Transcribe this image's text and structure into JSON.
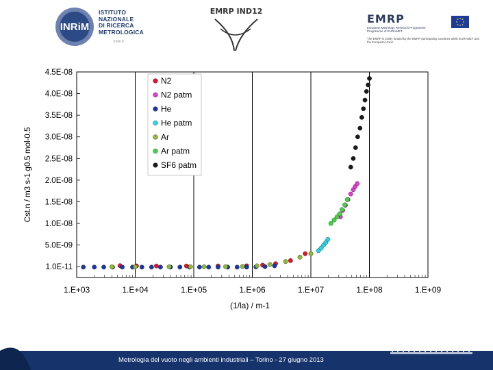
{
  "header": {
    "inrim_logo": {
      "mark": "INRiM",
      "lines": [
        "ISTITUTO",
        "NAZIONALE",
        "DI RICERCA",
        "METROLOGICA"
      ],
      "sub": "inrim.it"
    },
    "emrp_ind_title": "EMRP IND12",
    "emrp_logo": {
      "name": "EMRP",
      "tag_lines": [
        "European Metrology Research Programme",
        "Programme of EURAMET"
      ],
      "note": "The EMRP is jointly funded by the EMRP participating countries within EURAMET and the European Union"
    }
  },
  "chart_data": {
    "type": "scatter",
    "x_scale": "log",
    "xlabel": "(1/la)  /  m-1",
    "ylabel": "Cst.n   /  m3 s-1 g0.5 mol-0.5",
    "x_ticks": [
      "1.E+03",
      "1.E+04",
      "1.E+05",
      "1.E+06",
      "1.E+07",
      "1.E+08",
      "1.E+09"
    ],
    "x_tick_values": [
      1000,
      10000,
      100000,
      1000000,
      10000000,
      100000000,
      1000000000
    ],
    "y_ticks": [
      "1.0E-11",
      "5.0E-09",
      "1.0E-08",
      "1.5E-08",
      "2.0E-08",
      "2.5E-08",
      "3.0E-08",
      "3.5E-08",
      "4.0E-08",
      "4.5E-08"
    ],
    "y_tick_values": [
      1e-11,
      5e-09,
      1e-08,
      1.5e-08,
      2e-08,
      2.5e-08,
      3e-08,
      3.5e-08,
      4e-08,
      4.5e-08
    ],
    "xlim": [
      1000,
      1000000000
    ],
    "ylim": [
      -2.5e-09,
      4.5e-08
    ],
    "grid": "major vertical lines",
    "legend_position": "top-left inside plot",
    "series": [
      {
        "name": "N2",
        "color": "#e8132a",
        "x": [
          5500.0,
          10500.0,
          23000.0,
          75000.0,
          260000.0,
          800000.0,
          1500000.0,
          2500000.0,
          4500000.0,
          8000000.0
        ],
        "y": [
          2.3e-10,
          1.7e-10,
          1.6e-10,
          1.6e-10,
          1.7e-10,
          2e-10,
          3.5e-10,
          7e-10,
          1.4e-09,
          3e-09
        ]
      },
      {
        "name": "N2 patm",
        "color": "#e53ad0",
        "x": [
          32000000.0,
          35000000.0,
          39000000.0,
          43000000.0,
          48000000.0,
          53000000.0,
          57000000.0,
          62000000.0
        ],
        "y": [
          1.15e-08,
          1.3e-08,
          1.42e-08,
          1.55e-08,
          1.68e-08,
          1.78e-08,
          1.85e-08,
          1.92e-08
        ]
      },
      {
        "name": "He",
        "color": "#1a38a8",
        "x": [
          1300.0,
          2000.0,
          2900.0,
          4100.0,
          6000.0,
          9000.0,
          13000.0,
          19000.0,
          27000.0,
          40000.0,
          58000.0,
          85000.0,
          125000.0,
          180000.0,
          260000.0,
          380000.0,
          550000.0,
          800000.0,
          1150000.0,
          1650000.0,
          2400000.0
        ],
        "y": [
          -1e-10,
          -1e-10,
          -1e-10,
          -1e-10,
          -1e-10,
          -1e-10,
          -1e-10,
          -1e-10,
          -1e-10,
          -1e-10,
          -1e-10,
          -1e-10,
          -1e-10,
          -1e-10,
          -1e-10,
          -1e-10,
          -1e-10,
          -1e-10,
          -5e-11,
          2e-11,
          2e-10
        ]
      },
      {
        "name": "He patm",
        "color": "#26d8e8",
        "x": [
          13500000.0,
          15000000.0,
          16500000.0,
          18000000.0,
          19500000.0
        ],
        "y": [
          3.7e-09,
          4.3e-09,
          5e-09,
          5.6e-09,
          6.3e-09
        ]
      },
      {
        "name": "Ar",
        "color": "#8fbc2e",
        "x": [
          4000.0,
          10000.0,
          38000.0,
          88000.0,
          150000.0,
          350000.0,
          680000.0,
          1200000.0,
          2000000.0,
          3700000.0,
          6500000.0,
          10000000.0
        ],
        "y": [
          -3e-11,
          -3e-11,
          -2e-11,
          -2e-11,
          -1e-11,
          1e-11,
          5e-11,
          2e-10,
          5e-10,
          1.2e-09,
          2.2e-09,
          3e-09
        ]
      },
      {
        "name": "Ar patm",
        "color": "#3fd63f",
        "x": [
          22000000.0,
          25000000.0,
          28000000.0,
          31000000.0,
          34000000.0,
          38000000.0,
          42000000.0
        ],
        "y": [
          1e-08,
          1.08e-08,
          1.15e-08,
          1.22e-08,
          1.32e-08,
          1.43e-08,
          1.55e-08
        ]
      },
      {
        "name": "SF6 patm",
        "color": "#1a1a1a",
        "x": [
          48000000.0,
          53000000.0,
          58000000.0,
          63000000.0,
          69000000.0,
          74000000.0,
          79000000.0,
          84000000.0,
          89000000.0,
          95000000.0,
          100000000.0
        ],
        "y": [
          2.3e-08,
          2.5e-08,
          2.75e-08,
          3e-08,
          3.2e-08,
          3.45e-08,
          3.65e-08,
          3.85e-08,
          4.05e-08,
          4.2e-08,
          4.35e-08
        ]
      }
    ]
  },
  "footer": {
    "text": "Metrologia del vuoto negli ambienti industriali – Torino - 27 giugno 2013"
  }
}
